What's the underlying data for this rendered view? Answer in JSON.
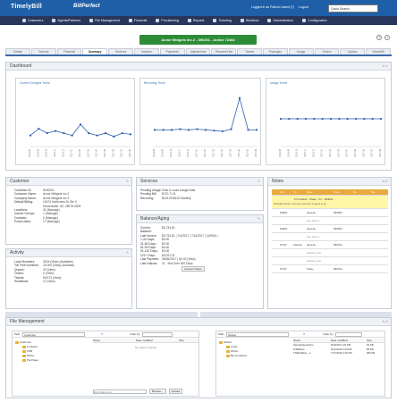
{
  "header": {
    "logo_text": "TimelyBill",
    "logo_by": "BillPerfect",
    "user_text": "Logged in as Patrick Lalvell (T)",
    "sign_out": "Logout",
    "search_placeholder": "Quick Search"
  },
  "nav": [
    {
      "label": "Customers",
      "icon": "users-icon"
    },
    {
      "label": "Agents/Partners",
      "icon": "handshake-icon"
    },
    {
      "label": "File Management",
      "icon": "folder-icon"
    },
    {
      "label": "Financial",
      "icon": "dollar-icon"
    },
    {
      "label": "Provisioning",
      "icon": "gear-icon"
    },
    {
      "label": "Reports",
      "icon": "chart-icon"
    },
    {
      "label": "Ticketing",
      "icon": "ticket-icon"
    },
    {
      "label": "Workflow",
      "icon": "workflow-icon"
    },
    {
      "label": "Administration",
      "icon": "admin-icon"
    },
    {
      "label": "Configuration",
      "icon": "wrench-icon"
    }
  ],
  "account_banner": "Acme Widgets Inc.2 - 390201 - Active 72464",
  "tabs": [
    "Details",
    "General",
    "Financial",
    "Summary",
    "Services",
    "Invoices",
    "Payments",
    "Adjustments",
    "Financial Hist",
    "Tickets",
    "Packages",
    "Usage",
    "Orders",
    "Quotes",
    "SmartDiff"
  ],
  "active_tab": "Summary",
  "colors": {
    "primary": "#1f5fa8",
    "nav_bg": "#28365c",
    "account_green": "#2e8c38",
    "chart_line": "#2c5fb0"
  },
  "dashboard": {
    "title": "Dashboard",
    "charts": [
      {
        "title": "Current Charges Trend"
      },
      {
        "title": "Recurring Trend"
      },
      {
        "title": "Usage Trend"
      }
    ]
  },
  "chart_data": [
    {
      "type": "line",
      "title": "Current Charges Trend",
      "x": [
        "2016-08",
        "2016-09",
        "2016-10",
        "2016-11",
        "2016-12",
        "2017-01",
        "2017-02",
        "2017-03",
        "2017-04",
        "2017-05",
        "2017-06",
        "2017-07",
        "2017-08"
      ],
      "values": [
        50,
        80,
        60,
        70,
        60,
        50,
        100,
        60,
        50,
        60,
        45,
        60,
        55
      ],
      "ylim": [
        0,
        250
      ]
    },
    {
      "type": "line",
      "title": "Recurring Trend",
      "x": [
        "2016-08",
        "2016-09",
        "2016-10",
        "2016-11",
        "2016-12",
        "2017-01",
        "2017-02",
        "2017-03",
        "2017-04",
        "2017-05",
        "2017-06",
        "2017-07",
        "2017-08"
      ],
      "values": [
        120,
        120,
        120,
        125,
        120,
        125,
        120,
        115,
        110,
        125,
        350,
        120,
        120
      ],
      "ylim": [
        0,
        400
      ]
    },
    {
      "type": "line",
      "title": "Usage Trend",
      "x": [
        "2016-08",
        "2016-09",
        "2016-10",
        "2016-11",
        "2016-12",
        "2017-01",
        "2017-02",
        "2017-03",
        "2017-04",
        "2017-05",
        "2017-06",
        "2017-07",
        "2017-08"
      ],
      "values": [
        0,
        0,
        0,
        0,
        0,
        0,
        0,
        0,
        0,
        0,
        0,
        0,
        0
      ],
      "ylim": [
        -1,
        1
      ]
    }
  ],
  "customer": {
    "title": "Customer",
    "rows": [
      {
        "k": "Customer ID:",
        "v": "5190201"
      },
      {
        "k": "Customer Name:",
        "v": "Acme Widgets Inc.2"
      },
      {
        "k": "Company Name:",
        "v": "Acme Widgets Inc.2"
      },
      {
        "k": "Default Billing:",
        "v": "10474 Northview Dr Ste C"
      },
      {
        "k": "",
        "v": "Huntersville, NC 28078-3005"
      },
      {
        "k": "Locations:",
        "v": "32 (Manage)"
      },
      {
        "k": "Invoice Groups:",
        "v": "1 (Manage)"
      },
      {
        "k": "Contacts:",
        "v": "2 (Manage)"
      },
      {
        "k": "Portal Users:",
        "v": "17 (Manage)"
      }
    ]
  },
  "activity": {
    "title": "Activity",
    "rows": [
      {
        "k": "Local Numbers:",
        "v": "3204 (View) (Available)"
      },
      {
        "k": "Toll Free Numbers:",
        "v": "2/1000 (View) (Activate)"
      },
      {
        "k": "Quotes:",
        "v": "33 (View)"
      },
      {
        "k": "Orders:",
        "v": "0 (View)"
      },
      {
        "k": "Tickets:",
        "v": "50/173 (View)"
      },
      {
        "k": "Workflows:",
        "v": "11 (View)"
      }
    ]
  },
  "services": {
    "title": "Services",
    "rows": [
      {
        "k": "Pending Usage:",
        "v": "Click to Load Usage Data"
      },
      {
        "k": "Pending Bill:",
        "v": "$720.71 N"
      },
      {
        "k": "Recurring:",
        "v": "$125.92/$120 Monthly"
      }
    ]
  },
  "balance": {
    "title": "Balance/Aging",
    "rows": [
      {
        "k": "Current Balance:",
        "v": "$3,734.81"
      },
      {
        "k": "Last Invoice:",
        "v": "$3,734.81 | 7/4/2017 | 7/14/2017 | (VIEW) /"
      },
      {
        "k": "1-30 Days:",
        "v": "$0.00"
      },
      {
        "k": "31-60 Days:",
        "v": "$0.00"
      },
      {
        "k": "61-90 Days:",
        "v": "$0.00"
      },
      {
        "k": "91-120 Days:",
        "v": "$0.00"
      },
      {
        "k": "121+ Days:",
        "v": "$3,021.21"
      },
      {
        "k": "Last Payment:",
        "v": "06/06/2017 | $1.00 (View)"
      },
      {
        "k": "Late Notices:",
        "v": "21 · Not Over 300 Days"
      }
    ],
    "button": "Account Notes"
  },
  "notes": {
    "title": "Notes",
    "columns": [
      "",
      "Cat...",
      "Ty...",
      "Note",
      "Crea...",
      "Re...",
      "Sta..."
    ],
    "highlight_row": [
      "",
      "",
      "",
      "FYI Collecti... Pleas... for... 06/30/2...",
      "",
      "",
      ""
    ],
    "highlight_text": "All fields check; customer account is good to go.",
    "rows": [
      [
        "",
        "1660/1",
        "",
        "Genera...",
        "06/05/2...",
        "",
        ""
      ],
      [
        "",
        "",
        "",
        "See Note 2",
        "",
        "",
        ""
      ],
      [
        "",
        "1660/1",
        "",
        "Genera...",
        "06/05/2...",
        "",
        ""
      ],
      [
        "",
        "",
        "",
        "See Note 4",
        "",
        "",
        ""
      ],
      [
        "",
        "3/7/17",
        "Internal",
        "Genera...",
        "06/07/2...",
        "",
        ""
      ],
      [
        "",
        "",
        "",
        "Existing note",
        "",
        "",
        ""
      ],
      [
        "",
        "",
        "",
        "Existing note",
        "",
        "",
        ""
      ],
      [
        "",
        "3/7/17",
        "",
        "Trace...",
        "06/07/2...",
        "",
        ""
      ]
    ]
  },
  "file_mgmt": {
    "title": "File Management",
    "left": {
      "path_label": "Path:",
      "path_value": "Customer",
      "filter": "Filter by:",
      "tree": [
        "Customer",
        "Contacts",
        "CSR",
        "NOAs",
        "Purchase"
      ],
      "columns": [
        "Name",
        "Date modified",
        "Size"
      ],
      "empty": "No data to display",
      "drop_text": "Drop files here",
      "browse": "Browse...",
      "upload": "Upload"
    },
    "right": {
      "path_label": "Path:",
      "path_value": "Global",
      "filter": "Filter by:",
      "tree": [
        "Global",
        "LOAs",
        "NOAs",
        "Bin Contracts"
      ],
      "columns": [
        "Name",
        "Date modified",
        "Size"
      ],
      "files": [
        {
          "name": "SampleQuoteTem...",
          "date": "5/2/2015 2:23 PM",
          "size": "63 KB"
        },
        {
          "name": "1NMWrite...",
          "date": "5/21/2015 2:23 PM",
          "size": "68 KB"
        },
        {
          "name": "TNWorkflow_ 1...",
          "date": "7/17/2016 2:16 PM",
          "size": "284 KB"
        }
      ]
    }
  }
}
